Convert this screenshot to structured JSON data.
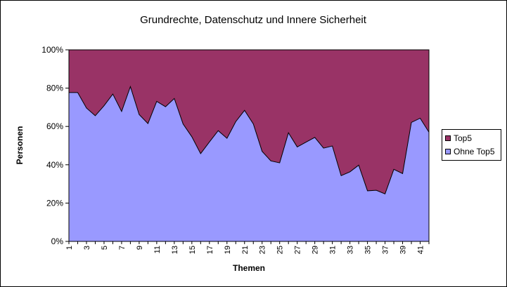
{
  "chart_data": {
    "type": "area",
    "stacked": "percent",
    "title": "Grundrechte, Datenschutz und Innere Sicherheit",
    "xlabel": "Themen",
    "ylabel": "Personen",
    "ylim": [
      0,
      100
    ],
    "yticks": [
      "0%",
      "20%",
      "40%",
      "60%",
      "80%",
      "100%"
    ],
    "x": [
      1,
      2,
      3,
      4,
      5,
      6,
      7,
      8,
      9,
      10,
      11,
      12,
      13,
      14,
      15,
      16,
      17,
      18,
      19,
      20,
      21,
      22,
      23,
      24,
      25,
      26,
      27,
      28,
      29,
      30,
      31,
      32,
      33,
      34,
      35,
      36,
      37,
      38,
      39,
      40,
      41,
      42
    ],
    "xtick_labels": [
      "1",
      "3",
      "5",
      "7",
      "9",
      "11",
      "13",
      "15",
      "17",
      "19",
      "21",
      "23",
      "25",
      "27",
      "29",
      "31",
      "33",
      "35",
      "37",
      "39",
      "41"
    ],
    "grid": false,
    "legend_position": "right",
    "series": [
      {
        "name": "Ohne Top5",
        "color": "#9999ff",
        "values": [
          77.7,
          77.7,
          69.6,
          65.6,
          70.8,
          76.9,
          67.8,
          80.8,
          66.2,
          61.5,
          73.1,
          70.3,
          74.6,
          61.3,
          54.6,
          45.8,
          51.9,
          57.8,
          53.8,
          62.5,
          68.4,
          61.3,
          47.0,
          42.0,
          41.0,
          56.7,
          49.3,
          51.8,
          54.3,
          48.7,
          49.8,
          34.3,
          36.3,
          39.8,
          26.4,
          26.7,
          24.8,
          37.6,
          35.4,
          62.1,
          64.3,
          57.0
        ]
      },
      {
        "name": "Top5",
        "color": "#993366",
        "values": [
          22.3,
          22.3,
          30.4,
          34.4,
          29.2,
          23.1,
          32.2,
          19.2,
          33.8,
          38.5,
          26.9,
          29.7,
          25.4,
          38.7,
          45.4,
          54.2,
          48.1,
          42.2,
          46.2,
          37.5,
          31.6,
          38.7,
          53.0,
          58.0,
          59.0,
          43.3,
          50.7,
          48.2,
          45.7,
          51.3,
          50.2,
          65.7,
          63.7,
          60.2,
          73.6,
          73.3,
          75.2,
          62.4,
          64.6,
          37.9,
          35.7,
          43.0
        ]
      }
    ]
  }
}
